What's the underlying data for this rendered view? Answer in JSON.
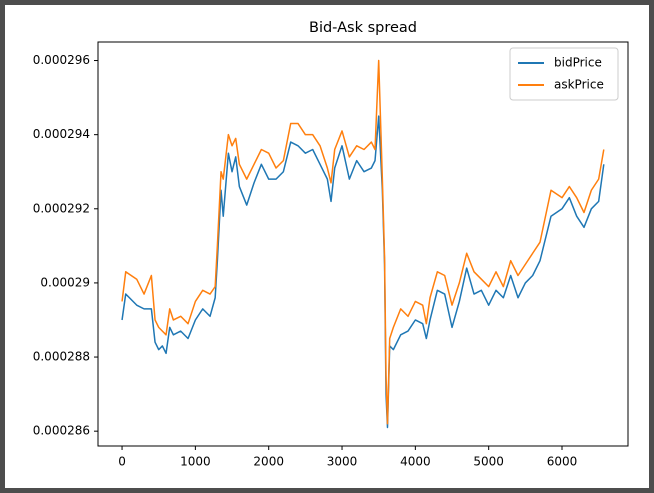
{
  "chart_data": {
    "type": "line",
    "title": "Bid-Ask spread",
    "x": [
      0,
      50,
      200,
      300,
      400,
      450,
      500,
      550,
      600,
      650,
      700,
      800,
      900,
      1000,
      1100,
      1200,
      1270,
      1300,
      1350,
      1380,
      1450,
      1500,
      1550,
      1600,
      1700,
      1800,
      1900,
      2000,
      2100,
      2200,
      2300,
      2400,
      2500,
      2600,
      2700,
      2800,
      2850,
      2900,
      3000,
      3100,
      3200,
      3300,
      3400,
      3450,
      3500,
      3550,
      3580,
      3600,
      3620,
      3650,
      3700,
      3800,
      3900,
      4000,
      4100,
      4150,
      4200,
      4300,
      4400,
      4500,
      4600,
      4700,
      4800,
      4900,
      5000,
      5100,
      5200,
      5300,
      5400,
      5500,
      5600,
      5700,
      5850,
      6000,
      6100,
      6200,
      6300,
      6400,
      6500,
      6570
    ],
    "series": [
      {
        "name": "bidPrice",
        "color": "#1f77b4",
        "values": [
          0.000289,
          0.0002897,
          0.0002894,
          0.0002893,
          0.0002893,
          0.0002884,
          0.0002882,
          0.0002883,
          0.0002881,
          0.0002888,
          0.0002886,
          0.0002887,
          0.0002885,
          0.000289,
          0.0002893,
          0.0002891,
          0.0002896,
          0.0002906,
          0.0002925,
          0.0002918,
          0.0002935,
          0.000293,
          0.0002934,
          0.0002926,
          0.0002921,
          0.0002927,
          0.0002932,
          0.0002928,
          0.0002928,
          0.000293,
          0.0002938,
          0.0002937,
          0.0002935,
          0.0002936,
          0.0002932,
          0.0002928,
          0.0002922,
          0.0002931,
          0.0002937,
          0.0002928,
          0.0002933,
          0.000293,
          0.0002931,
          0.0002933,
          0.0002945,
          0.0002925,
          0.0002905,
          0.000287,
          0.0002861,
          0.0002883,
          0.0002882,
          0.0002886,
          0.0002887,
          0.000289,
          0.0002889,
          0.0002885,
          0.000289,
          0.0002898,
          0.0002897,
          0.0002888,
          0.0002895,
          0.0002904,
          0.0002897,
          0.0002898,
          0.0002894,
          0.0002898,
          0.0002896,
          0.0002902,
          0.0002896,
          0.00029,
          0.0002902,
          0.0002906,
          0.0002918,
          0.000292,
          0.0002923,
          0.0002918,
          0.0002915,
          0.000292,
          0.0002922,
          0.0002932
        ]
      },
      {
        "name": "askPrice",
        "color": "#ff7f0e",
        "values": [
          0.0002895,
          0.0002903,
          0.0002901,
          0.0002897,
          0.0002902,
          0.000289,
          0.0002888,
          0.0002887,
          0.0002886,
          0.0002893,
          0.000289,
          0.0002891,
          0.0002889,
          0.0002895,
          0.0002898,
          0.0002897,
          0.0002899,
          0.000291,
          0.000293,
          0.0002928,
          0.000294,
          0.0002937,
          0.0002939,
          0.0002932,
          0.0002928,
          0.0002932,
          0.0002936,
          0.0002935,
          0.0002931,
          0.0002933,
          0.0002943,
          0.0002943,
          0.000294,
          0.000294,
          0.0002937,
          0.0002931,
          0.0002927,
          0.0002936,
          0.0002941,
          0.0002934,
          0.0002937,
          0.0002936,
          0.0002938,
          0.0002936,
          0.000296,
          0.0002928,
          0.0002907,
          0.0002875,
          0.0002862,
          0.0002885,
          0.0002888,
          0.0002893,
          0.0002891,
          0.0002895,
          0.0002894,
          0.0002889,
          0.0002896,
          0.0002903,
          0.0002902,
          0.0002894,
          0.00029,
          0.0002908,
          0.0002903,
          0.0002901,
          0.0002899,
          0.0002903,
          0.0002899,
          0.0002906,
          0.0002902,
          0.0002905,
          0.0002908,
          0.0002911,
          0.0002925,
          0.0002923,
          0.0002926,
          0.0002923,
          0.0002919,
          0.0002925,
          0.0002928,
          0.0002936
        ]
      }
    ],
    "xlim": [
      -328,
      6900
    ],
    "xticks": [
      0,
      1000,
      2000,
      3000,
      4000,
      5000,
      6000
    ],
    "ylim": [
      0.0002856,
      0.0002965
    ],
    "yticks": [
      0.000286,
      0.000288,
      0.00029,
      0.000292,
      0.000294,
      0.000296
    ],
    "grid": false,
    "legend": "upper right"
  }
}
